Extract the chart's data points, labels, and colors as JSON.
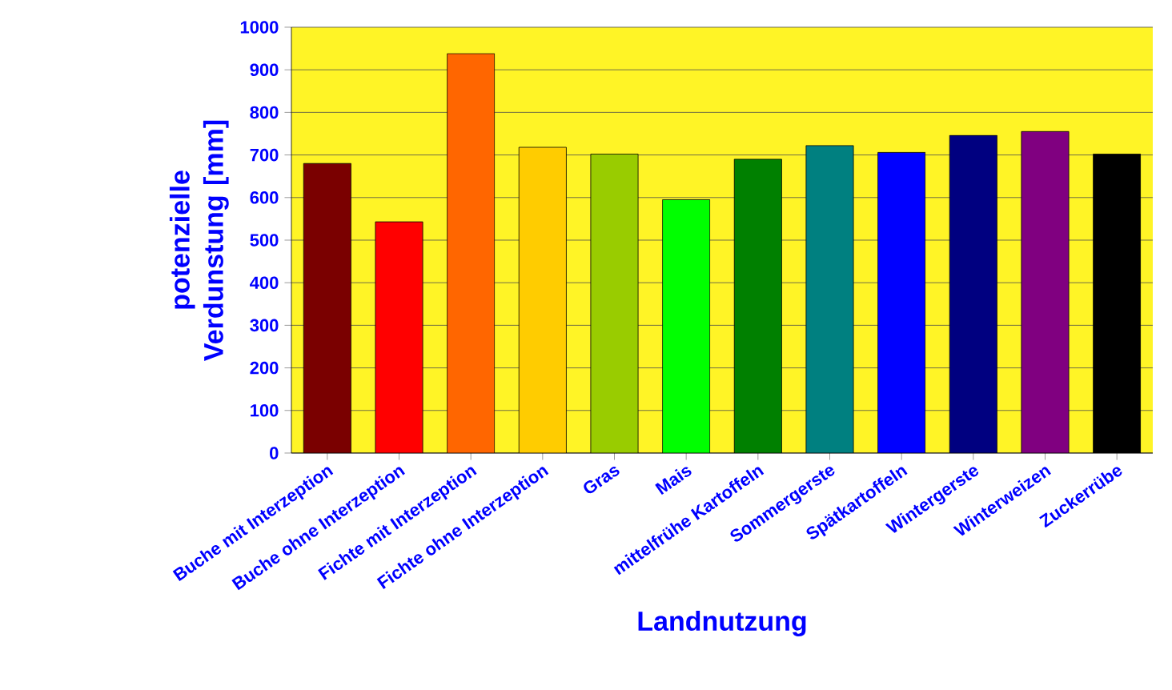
{
  "chart_data": {
    "type": "bar",
    "xlabel": "Landnutzung",
    "ylabel": "potenzielle Verdunstung [mm]",
    "categories": [
      "Buche mit Interzeption",
      "Buche ohne Interzeption",
      "Fichte mit Interzeption",
      "Fichte ohne Interzeption",
      "Gras",
      "Mais",
      "mittelfrühe Kartoffeln",
      "Sommergerste",
      "Spätkartoffeln",
      "Wintergerste",
      "Winterweizen",
      "Zuckerrübe"
    ],
    "values": [
      680,
      543,
      938,
      718,
      702,
      595,
      690,
      722,
      706,
      746,
      755,
      702
    ],
    "colors": [
      "#7a0000",
      "#ff0000",
      "#ff6600",
      "#ffcc00",
      "#99cc00",
      "#00ff00",
      "#008000",
      "#008080",
      "#0000ff",
      "#000080",
      "#800080",
      "#000000"
    ],
    "ylim": [
      0,
      1000
    ],
    "yticks": [
      0,
      100,
      200,
      300,
      400,
      500,
      600,
      700,
      800,
      900,
      1000
    ],
    "grid": "y"
  }
}
